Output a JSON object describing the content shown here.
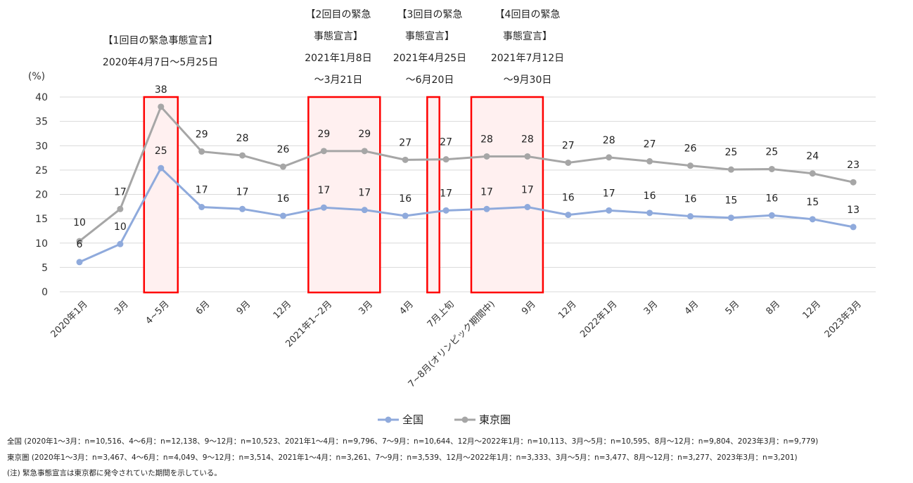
{
  "chart_data": {
    "type": "line",
    "y_unit": "(%)",
    "ylim": [
      0,
      40
    ],
    "y_ticks": [
      "0",
      "5",
      "10",
      "15",
      "20",
      "25",
      "30",
      "35",
      "40"
    ],
    "grid": true,
    "legend_position": "bottom",
    "categories": [
      "2020年1月",
      "3月",
      "4~5月",
      "6月",
      "9月",
      "12月",
      "2021年1~2月",
      "3月",
      "4月",
      "7月上旬",
      "7~8月(オリンピック期間中)",
      "9月",
      "12月",
      "2022年1月",
      "3月",
      "4月",
      "5月",
      "8月",
      "12月",
      "2023年3月"
    ],
    "series": [
      {
        "name": "全国",
        "color": "#8faadc",
        "values": [
          6.1,
          9.8,
          25.4,
          17.4,
          17.0,
          15.6,
          17.3,
          16.8,
          15.6,
          16.7,
          17.0,
          17.4,
          15.8,
          16.7,
          16.2,
          15.5,
          15.2,
          15.7,
          14.9,
          13.3
        ],
        "labels": [
          "6",
          "10",
          "25",
          "17",
          "17",
          "16",
          "17",
          "17",
          "16",
          "17",
          "17",
          "17",
          "16",
          "17",
          "16",
          "16",
          "15",
          "16",
          "15",
          "13"
        ]
      },
      {
        "name": "東京圏",
        "color": "#a6a6a6",
        "values": [
          10.4,
          17.0,
          38.0,
          28.8,
          28.0,
          25.7,
          28.9,
          28.9,
          27.1,
          27.2,
          27.8,
          27.8,
          26.5,
          27.6,
          26.8,
          25.9,
          25.1,
          25.2,
          24.3,
          22.5
        ],
        "labels": [
          "10",
          "17",
          "38",
          "29",
          "28",
          "26",
          "29",
          "29",
          "27",
          "27",
          "28",
          "28",
          "27",
          "28",
          "27",
          "26",
          "25",
          "25",
          "24",
          "23"
        ]
      }
    ],
    "annotations": [
      {
        "lines": [
          "【1回目の緊急事態宣言】",
          "2020年4月7日～5月25日"
        ]
      },
      {
        "lines": [
          "【2回目の緊急",
          "事態宣言】",
          "2021年1月8日",
          "～3月21日"
        ]
      },
      {
        "lines": [
          "【3回目の緊急",
          "事態宣言】",
          "2021年4月25日",
          "～6月20日"
        ]
      },
      {
        "lines": [
          "【4回目の緊急",
          "事態宣言】",
          "2021年7月12日",
          "～9月30日"
        ]
      }
    ],
    "highlight_color": "#ff0000"
  },
  "notes": [
    "全国 (2020年1～3月：n=10,516、4～6月：n=12,138、9～12月：n=10,523、2021年1～4月：n=9,796、7～9月：n=10,644、12月～2022年1月：n=10,113、3月～5月：n=10,595、8月～12月：n=9,804、2023年3月：n=9,779)",
    "東京圏 (2020年1～3月：n=3,467、4～6月：n=4,049、9～12月：n=3,514、2021年1～4月：n=3,261、7～9月：n=3,539、12月～2022年1月：n=3,333、3月～5月：n=3,477、8月～12月：n=3,277、2023年3月：n=3,201)",
    "(注) 緊急事態宣言は東京都に発令されていた期間を示している。"
  ]
}
